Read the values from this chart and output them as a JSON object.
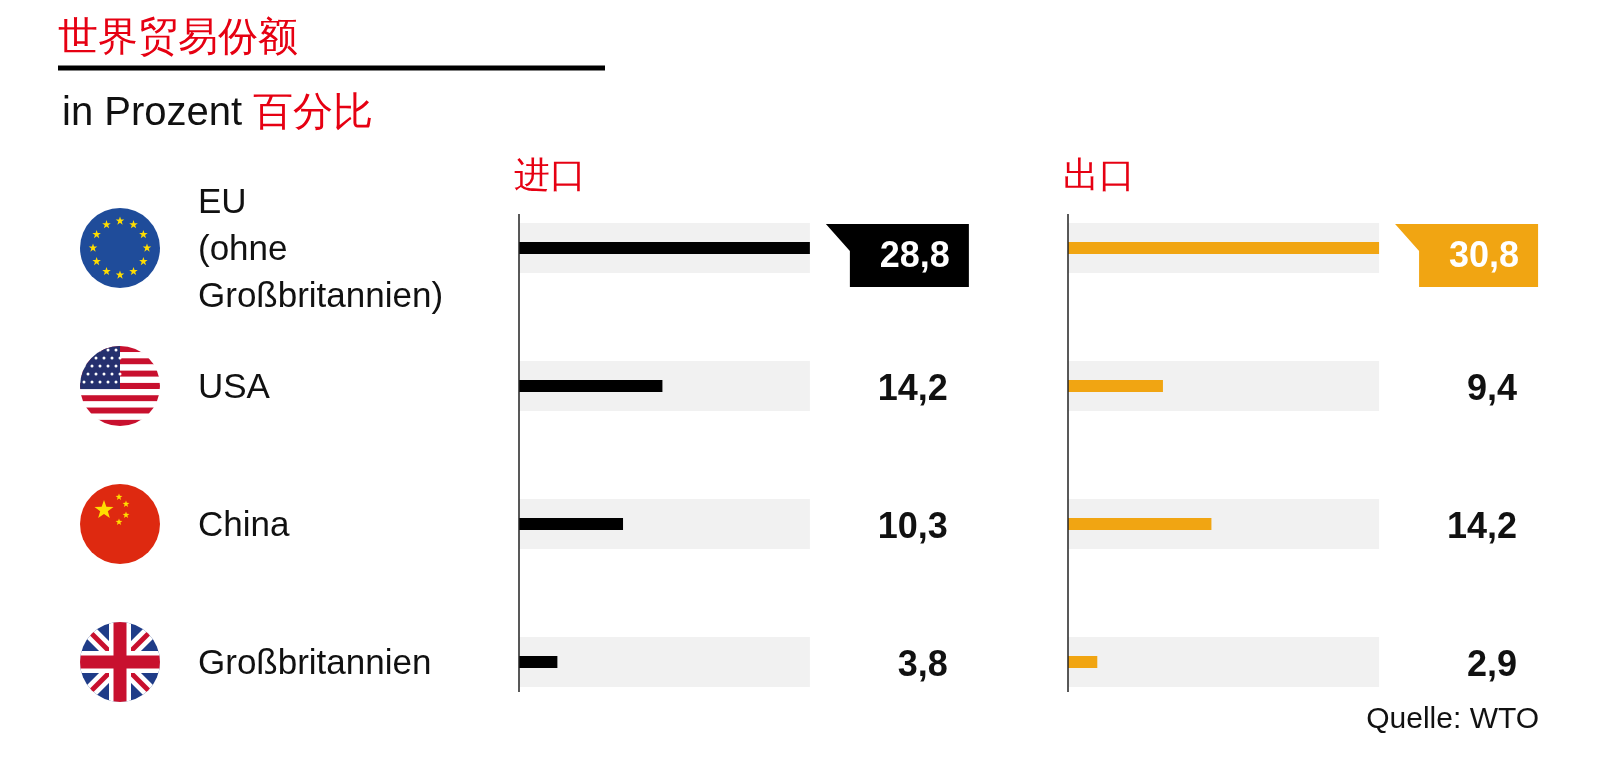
{
  "chart_data": [
    {
      "type": "bar",
      "orientation": "horizontal",
      "title": "世界贸易份额",
      "subtitle": "in Prozent 百分比",
      "categories": [
        "EU (ohne Großbritannien)",
        "USA",
        "China",
        "Großbritannien"
      ],
      "series": [
        {
          "name": "进口",
          "color": "#000000",
          "values": [
            28.8,
            14.2,
            10.3,
            3.8
          ],
          "value_labels": [
            "28,8",
            "14,2",
            "10,3",
            "3,8"
          ]
        }
      ],
      "tick_labels": "y",
      "bands": [
        {
          "axis": "y",
          "from": "EU (ohne Großbritannien)",
          "to": "EU (ohne Großbritannien)",
          "color": "#f1f1f1"
        },
        {
          "axis": "y",
          "from": "USA",
          "to": "USA",
          "color": "#f1f1f1"
        },
        {
          "axis": "y",
          "from": "China",
          "to": "China",
          "color": "#f1f1f1"
        },
        {
          "axis": "y",
          "from": "Großbritannien",
          "to": "Großbritannien",
          "color": "#f1f1f1"
        }
      ]
    },
    {
      "type": "bar",
      "orientation": "horizontal",
      "categories": [
        "EU (ohne Großbritannien)",
        "USA",
        "China",
        "Großbritannien"
      ],
      "series": [
        {
          "name": "出口",
          "color": "#f1a512",
          "values": [
            30.8,
            9.4,
            14.2,
            2.9
          ],
          "value_labels": [
            "30,8",
            "9,4",
            "14,2",
            "2,9"
          ]
        }
      ],
      "tick_labels": false,
      "annotations": [
        "Quelle: WTO"
      ],
      "bands": [
        {
          "axis": "y",
          "from": "EU (ohne Großbritannien)",
          "to": "EU (ohne Großbritannien)",
          "color": "#f1f1f1"
        },
        {
          "axis": "y",
          "from": "USA",
          "to": "USA",
          "color": "#f1f1f1"
        },
        {
          "axis": "y",
          "from": "China",
          "to": "China",
          "color": "#f1f1f1"
        },
        {
          "axis": "y",
          "from": "Großbritannien",
          "to": "Großbritannien",
          "color": "#f1f1f1"
        }
      ]
    }
  ]
}
